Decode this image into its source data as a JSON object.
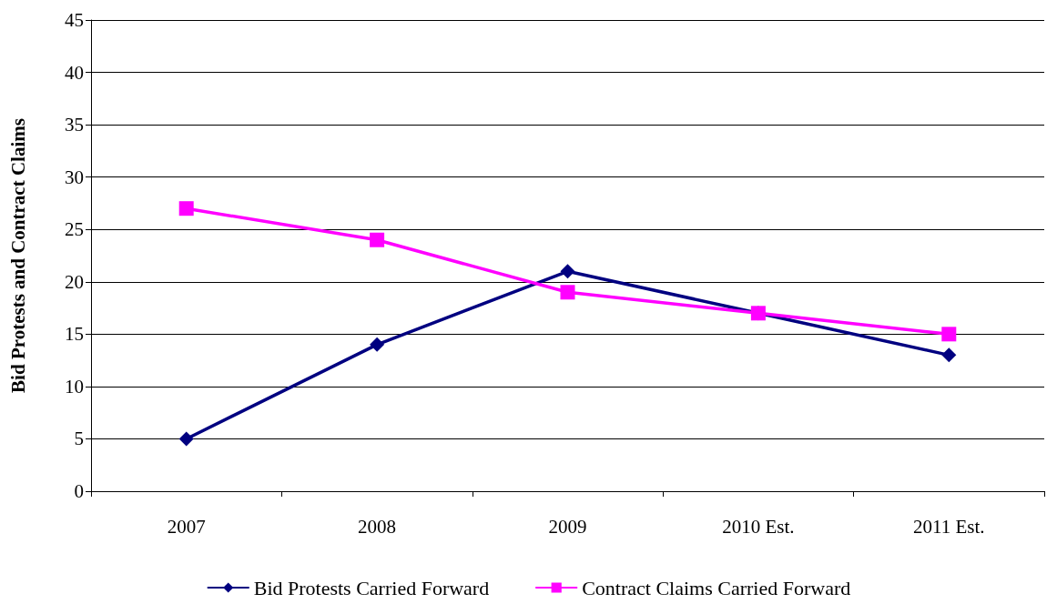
{
  "chart_data": {
    "type": "line",
    "ylabel": "Bid Protests and Contract Claims",
    "categories": [
      "2007",
      "2008",
      "2009",
      "2010 Est.",
      "2011 Est."
    ],
    "series": [
      {
        "name": "Bid Protests Carried Forward",
        "color": "#000080",
        "marker": "diamond",
        "values": [
          5,
          14,
          21,
          17,
          13
        ]
      },
      {
        "name": "Contract Claims Carried Forward",
        "color": "#ff00ff",
        "marker": "square",
        "values": [
          27,
          24,
          19,
          17,
          15
        ]
      }
    ],
    "ylim": [
      0,
      45
    ],
    "yticks": [
      0,
      5,
      10,
      15,
      20,
      25,
      30,
      35,
      40,
      45
    ],
    "grid": "y",
    "legend": "bottom",
    "line_style": "solid"
  }
}
